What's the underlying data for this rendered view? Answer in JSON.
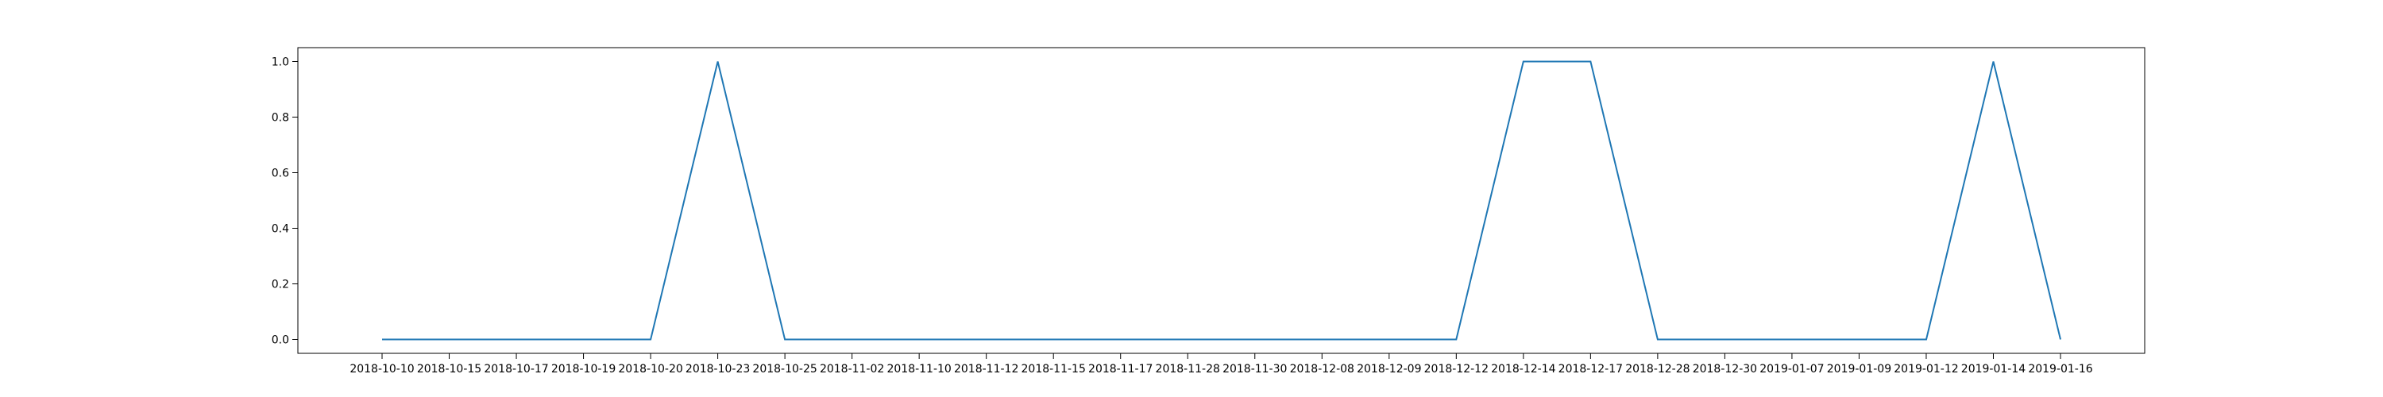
{
  "chart_data": {
    "type": "line",
    "title": "",
    "xlabel": "",
    "ylabel": "",
    "x": [
      "2018-10-10",
      "2018-10-15",
      "2018-10-17",
      "2018-10-19",
      "2018-10-20",
      "2018-10-23",
      "2018-10-25",
      "2018-11-02",
      "2018-11-10",
      "2018-11-12",
      "2018-11-15",
      "2018-11-17",
      "2018-11-28",
      "2018-11-30",
      "2018-12-08",
      "2018-12-09",
      "2018-12-12",
      "2018-12-14",
      "2018-12-17",
      "2018-12-28",
      "2018-12-30",
      "2019-01-07",
      "2019-01-09",
      "2019-01-12",
      "2019-01-14",
      "2019-01-16"
    ],
    "series": [
      {
        "values": [
          0,
          0,
          0,
          0,
          0,
          1,
          0,
          0,
          0,
          0,
          0,
          0,
          0,
          0,
          0,
          0,
          0,
          1,
          1,
          0,
          0,
          0,
          0,
          0,
          1,
          0
        ],
        "color": "#1f77b4"
      }
    ],
    "ylim": [
      -0.05,
      1.05
    ],
    "yticks": [
      0.0,
      0.2,
      0.4,
      0.6,
      0.8,
      1.0
    ],
    "ytick_labels": [
      "0.0",
      "0.2",
      "0.4",
      "0.6",
      "0.8",
      "1.0"
    ],
    "grid": false,
    "legend": "none"
  }
}
